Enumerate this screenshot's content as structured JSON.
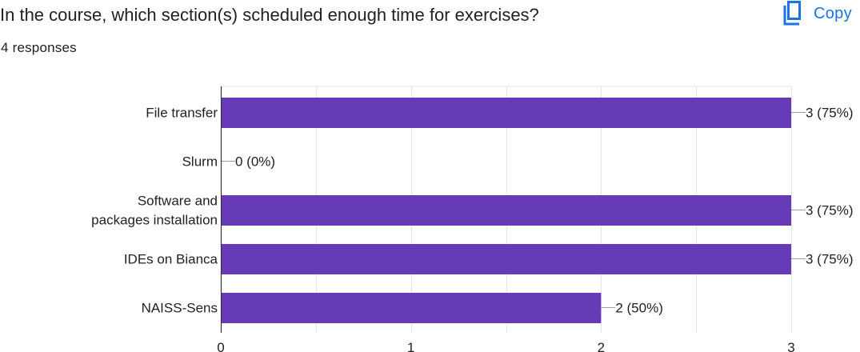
{
  "question": {
    "title": "In the course, which section(s) scheduled enough time for exercises?",
    "responses": "4 responses"
  },
  "toolbar": {
    "copy_label": "Copy",
    "copy_icon": "copy-icon"
  },
  "colors": {
    "bar": "#673ab7",
    "grid": "#e6e6e6",
    "axis": "#333333",
    "text": "#222222",
    "accent": "#1a73e8"
  },
  "chart_data": {
    "type": "bar",
    "orientation": "horizontal",
    "categories": [
      "File transfer",
      "Slurm",
      "Software and packages installation",
      "IDEs on Bianca",
      "NAISS-Sens"
    ],
    "values": [
      3,
      0,
      3,
      3,
      2
    ],
    "data_labels": [
      "3 (75%)",
      "0 (0%)",
      "3 (75%)",
      "3 (75%)",
      "2 (50%)"
    ],
    "xlim": [
      0,
      3
    ],
    "x_ticks": [
      0,
      1,
      2,
      3
    ],
    "grid": true
  }
}
